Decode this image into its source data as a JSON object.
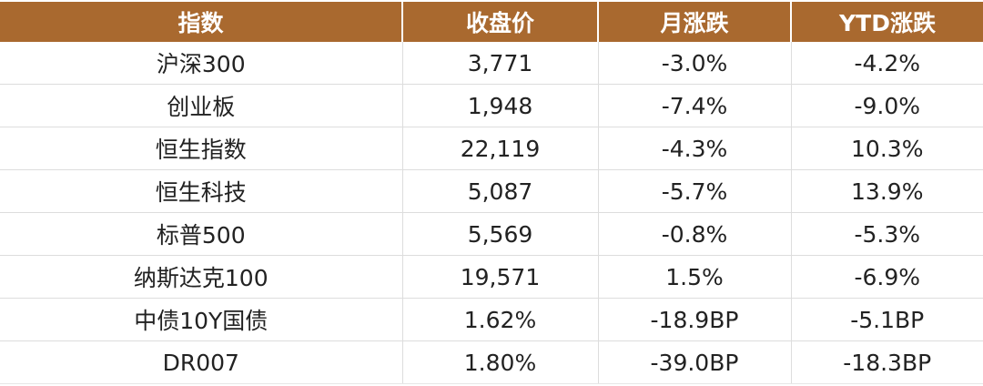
{
  "table": {
    "headers": [
      "指数",
      "收盘价",
      "月涨跌",
      "YTD涨跌"
    ],
    "rows": [
      [
        "沪深300",
        "3,771",
        "-3.0%",
        "-4.2%"
      ],
      [
        "创业板",
        "1,948",
        "-7.4%",
        "-9.0%"
      ],
      [
        "恒生指数",
        "22,119",
        "-4.3%",
        "10.3%"
      ],
      [
        "恒生科技",
        "5,087",
        "-5.7%",
        "13.9%"
      ],
      [
        "标普500",
        "5,569",
        "-0.8%",
        "-5.3%"
      ],
      [
        "纳斯达克100",
        "19,571",
        "1.5%",
        "-6.9%"
      ],
      [
        "中债10Y国债",
        "1.62%",
        "-18.9BP",
        "-5.1BP"
      ],
      [
        "DR007",
        "1.80%",
        "-39.0BP",
        "-18.3BP"
      ]
    ]
  },
  "colors": {
    "header_bg": "#a9692f",
    "header_text": "#ffffff",
    "body_text": "#222222",
    "grid": "#dddddd"
  }
}
